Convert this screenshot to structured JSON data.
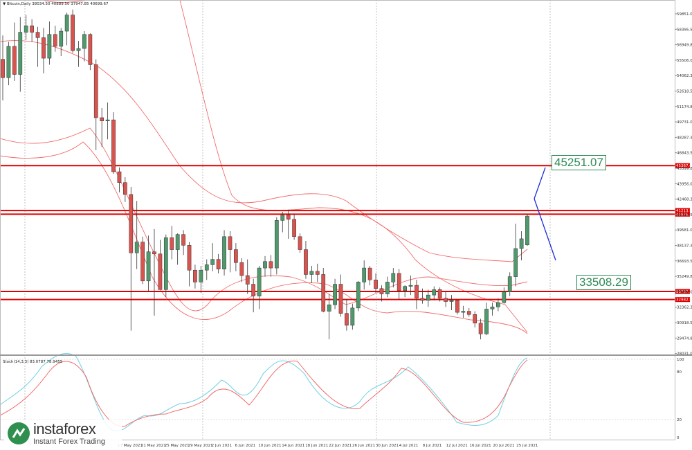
{
  "header": {
    "main": "▼ Bitcoin,Daily  38034.50 40889.50 37947.85 40699.67",
    "osc": "Stoch(14,3,3) 83.0787 78.9455"
  },
  "price_axis": [
    "59851.05",
    "58395.55",
    "56949.80",
    "55506.05",
    "54062.30",
    "52618.55",
    "51174.80",
    "49731.05",
    "48287.30",
    "46843.55",
    "45399.80",
    "43956.05",
    "42468.30",
    "41024.55",
    "39581.05",
    "38137.30",
    "36693.55",
    "35249.80",
    "33806.05",
    "32362.30",
    "30918.55",
    "29474.80",
    "28031.05"
  ],
  "osc_axis": [
    "100",
    "80",
    "20",
    "0"
  ],
  "date_axis": [
    "17 May 2021",
    "21 May 2021",
    "25 May 2021",
    "29 May 2021",
    "2 Jun 2021",
    "6 Jun 2021",
    "10 Jun 2021",
    "14 Jun 2021",
    "18 Jun 2021",
    "22 Jun 2021",
    "26 Jun 2021",
    "30 Jun 2021",
    "4 Jul 2021",
    "8 Jul 2021",
    "12 Jul 2021",
    "16 Jul 2021",
    "20 Jul 2021",
    "25 Jul 2021"
  ],
  "levels": [
    {
      "price": 45367.6,
      "label": "45367.60"
    },
    {
      "price": 41213.57,
      "label": "41213.57"
    },
    {
      "price": 40876.24,
      "label": "40876.24"
    },
    {
      "price": 33727.37,
      "label": "33727.37"
    },
    {
      "price": 32982.55,
      "label": "32982.55"
    }
  ],
  "targets": {
    "up": "45251.07",
    "down": "33508.29"
  },
  "logo": {
    "name": "instaforex",
    "sub": "Instant Forex Trading"
  },
  "colors": {
    "bull": "#4f9a6c",
    "bear": "#d9534f",
    "level": "#e00000",
    "band": "#f26b6b",
    "stoch_k": "#6fd0e0",
    "stoch_d": "#f26b6b",
    "arrow": "#1a2cd8"
  },
  "chart_data": {
    "type": "candlestick",
    "title": "Bitcoin,Daily",
    "ylim": [
      28031.05,
      59851.05
    ],
    "candles": [
      {
        "o": 55200,
        "h": 57400,
        "l": 51400,
        "c": 53500
      },
      {
        "o": 53500,
        "h": 56800,
        "l": 52800,
        "c": 56400
      },
      {
        "o": 56400,
        "h": 58600,
        "l": 53200,
        "c": 53800
      },
      {
        "o": 53800,
        "h": 59100,
        "l": 52200,
        "c": 57700
      },
      {
        "o": 57700,
        "h": 59300,
        "l": 57000,
        "c": 58300
      },
      {
        "o": 58300,
        "h": 58900,
        "l": 56800,
        "c": 57700
      },
      {
        "o": 57700,
        "h": 58200,
        "l": 54500,
        "c": 57200
      },
      {
        "o": 57200,
        "h": 58100,
        "l": 53900,
        "c": 55300
      },
      {
        "o": 55300,
        "h": 58700,
        "l": 54700,
        "c": 57500
      },
      {
        "o": 57500,
        "h": 58300,
        "l": 55900,
        "c": 56400
      },
      {
        "o": 56400,
        "h": 58100,
        "l": 55500,
        "c": 57800
      },
      {
        "o": 57800,
        "h": 59500,
        "l": 56500,
        "c": 59300
      },
      {
        "o": 59300,
        "h": 59800,
        "l": 55800,
        "c": 56000
      },
      {
        "o": 56000,
        "h": 56900,
        "l": 54500,
        "c": 56200
      },
      {
        "o": 56200,
        "h": 57800,
        "l": 55000,
        "c": 57500
      },
      {
        "o": 57500,
        "h": 57600,
        "l": 54200,
        "c": 54700
      },
      {
        "o": 54700,
        "h": 55200,
        "l": 46800,
        "c": 49800
      },
      {
        "o": 49800,
        "h": 50700,
        "l": 47100,
        "c": 49500
      },
      {
        "o": 49500,
        "h": 51200,
        "l": 47800,
        "c": 49600
      },
      {
        "o": 49600,
        "h": 50300,
        "l": 44600,
        "c": 44800
      },
      {
        "o": 44800,
        "h": 45200,
        "l": 42900,
        "c": 43800
      },
      {
        "o": 43800,
        "h": 44300,
        "l": 42000,
        "c": 42700
      },
      {
        "o": 42700,
        "h": 43400,
        "l": 30100,
        "c": 37300
      },
      {
        "o": 37300,
        "h": 42100,
        "l": 35800,
        "c": 38300
      },
      {
        "o": 38300,
        "h": 38800,
        "l": 34400,
        "c": 34700
      },
      {
        "o": 34700,
        "h": 38900,
        "l": 33700,
        "c": 37400
      },
      {
        "o": 37400,
        "h": 39500,
        "l": 31500,
        "c": 37200
      },
      {
        "o": 37200,
        "h": 38500,
        "l": 33900,
        "c": 33900
      },
      {
        "o": 33900,
        "h": 39000,
        "l": 33200,
        "c": 38700
      },
      {
        "o": 38700,
        "h": 39800,
        "l": 36700,
        "c": 37600
      },
      {
        "o": 37600,
        "h": 39100,
        "l": 36200,
        "c": 39000
      },
      {
        "o": 39000,
        "h": 39400,
        "l": 37100,
        "c": 38000
      },
      {
        "o": 38000,
        "h": 38300,
        "l": 34200,
        "c": 35700
      },
      {
        "o": 35700,
        "h": 36200,
        "l": 34000,
        "c": 34600
      },
      {
        "o": 34600,
        "h": 36100,
        "l": 33600,
        "c": 35700
      },
      {
        "o": 35700,
        "h": 36700,
        "l": 34800,
        "c": 36200
      },
      {
        "o": 36200,
        "h": 38200,
        "l": 35600,
        "c": 36700
      },
      {
        "o": 36700,
        "h": 37200,
        "l": 35400,
        "c": 35800
      },
      {
        "o": 35800,
        "h": 39400,
        "l": 35200,
        "c": 38800
      },
      {
        "o": 38800,
        "h": 39300,
        "l": 35500,
        "c": 37600
      },
      {
        "o": 37600,
        "h": 38200,
        "l": 35600,
        "c": 36400
      },
      {
        "o": 36400,
        "h": 36800,
        "l": 34600,
        "c": 35200
      },
      {
        "o": 35200,
        "h": 36700,
        "l": 33500,
        "c": 34400
      },
      {
        "o": 34400,
        "h": 34900,
        "l": 31800,
        "c": 33300
      },
      {
        "o": 33300,
        "h": 36100,
        "l": 32100,
        "c": 35900
      },
      {
        "o": 35900,
        "h": 37000,
        "l": 35100,
        "c": 36500
      },
      {
        "o": 36500,
        "h": 37100,
        "l": 35100,
        "c": 35900
      },
      {
        "o": 35900,
        "h": 40600,
        "l": 35300,
        "c": 40300
      },
      {
        "o": 40300,
        "h": 41100,
        "l": 39200,
        "c": 40800
      },
      {
        "o": 40800,
        "h": 41300,
        "l": 38600,
        "c": 40400
      },
      {
        "o": 40400,
        "h": 40900,
        "l": 38500,
        "c": 38800
      },
      {
        "o": 38800,
        "h": 39100,
        "l": 37300,
        "c": 37600
      },
      {
        "o": 37600,
        "h": 38400,
        "l": 34900,
        "c": 35300
      },
      {
        "o": 35300,
        "h": 36100,
        "l": 34500,
        "c": 35600
      },
      {
        "o": 35600,
        "h": 36300,
        "l": 34600,
        "c": 35300
      },
      {
        "o": 35300,
        "h": 35900,
        "l": 31800,
        "c": 31900
      },
      {
        "o": 31900,
        "h": 33500,
        "l": 29300,
        "c": 32500
      },
      {
        "o": 32500,
        "h": 34900,
        "l": 32100,
        "c": 34400
      },
      {
        "o": 34400,
        "h": 35300,
        "l": 31400,
        "c": 31700
      },
      {
        "o": 31700,
        "h": 33000,
        "l": 30100,
        "c": 30600
      },
      {
        "o": 30600,
        "h": 32600,
        "l": 30200,
        "c": 32200
      },
      {
        "o": 32200,
        "h": 34700,
        "l": 31900,
        "c": 34600
      },
      {
        "o": 34600,
        "h": 36600,
        "l": 33900,
        "c": 35900
      },
      {
        "o": 35900,
        "h": 36100,
        "l": 34300,
        "c": 34800
      },
      {
        "o": 34800,
        "h": 35400,
        "l": 33600,
        "c": 34000
      },
      {
        "o": 34000,
        "h": 34300,
        "l": 32800,
        "c": 33500
      },
      {
        "o": 33500,
        "h": 35100,
        "l": 33200,
        "c": 34600
      },
      {
        "o": 34600,
        "h": 35900,
        "l": 34100,
        "c": 35400
      },
      {
        "o": 35400,
        "h": 35800,
        "l": 33000,
        "c": 33800
      },
      {
        "o": 33800,
        "h": 34300,
        "l": 33200,
        "c": 34200
      },
      {
        "o": 34200,
        "h": 35200,
        "l": 33400,
        "c": 34300
      },
      {
        "o": 34300,
        "h": 34800,
        "l": 32100,
        "c": 33100
      },
      {
        "o": 33100,
        "h": 34000,
        "l": 32600,
        "c": 32900
      },
      {
        "o": 32900,
        "h": 33900,
        "l": 32300,
        "c": 33400
      },
      {
        "o": 33400,
        "h": 34200,
        "l": 32900,
        "c": 33900
      },
      {
        "o": 33900,
        "h": 34100,
        "l": 32800,
        "c": 33100
      },
      {
        "o": 33100,
        "h": 33700,
        "l": 32300,
        "c": 32800
      },
      {
        "o": 32800,
        "h": 33400,
        "l": 32000,
        "c": 32900
      },
      {
        "o": 32900,
        "h": 33000,
        "l": 31600,
        "c": 31800
      },
      {
        "o": 31800,
        "h": 32400,
        "l": 31300,
        "c": 31900
      },
      {
        "o": 31900,
        "h": 32200,
        "l": 31400,
        "c": 31600
      },
      {
        "o": 31600,
        "h": 31900,
        "l": 30400,
        "c": 30800
      },
      {
        "o": 30800,
        "h": 31200,
        "l": 29300,
        "c": 29800
      },
      {
        "o": 29800,
        "h": 32700,
        "l": 29700,
        "c": 32100
      },
      {
        "o": 32100,
        "h": 32700,
        "l": 31500,
        "c": 32300
      },
      {
        "o": 32300,
        "h": 33100,
        "l": 31900,
        "c": 32700
      },
      {
        "o": 32700,
        "h": 34100,
        "l": 32600,
        "c": 33700
      },
      {
        "o": 33700,
        "h": 35500,
        "l": 33300,
        "c": 35100
      },
      {
        "o": 35100,
        "h": 40000,
        "l": 34200,
        "c": 37700
      },
      {
        "o": 37700,
        "h": 39300,
        "l": 36600,
        "c": 38600
      },
      {
        "o": 38034.5,
        "h": 40889.5,
        "l": 37947.85,
        "c": 40699.67
      }
    ]
  }
}
